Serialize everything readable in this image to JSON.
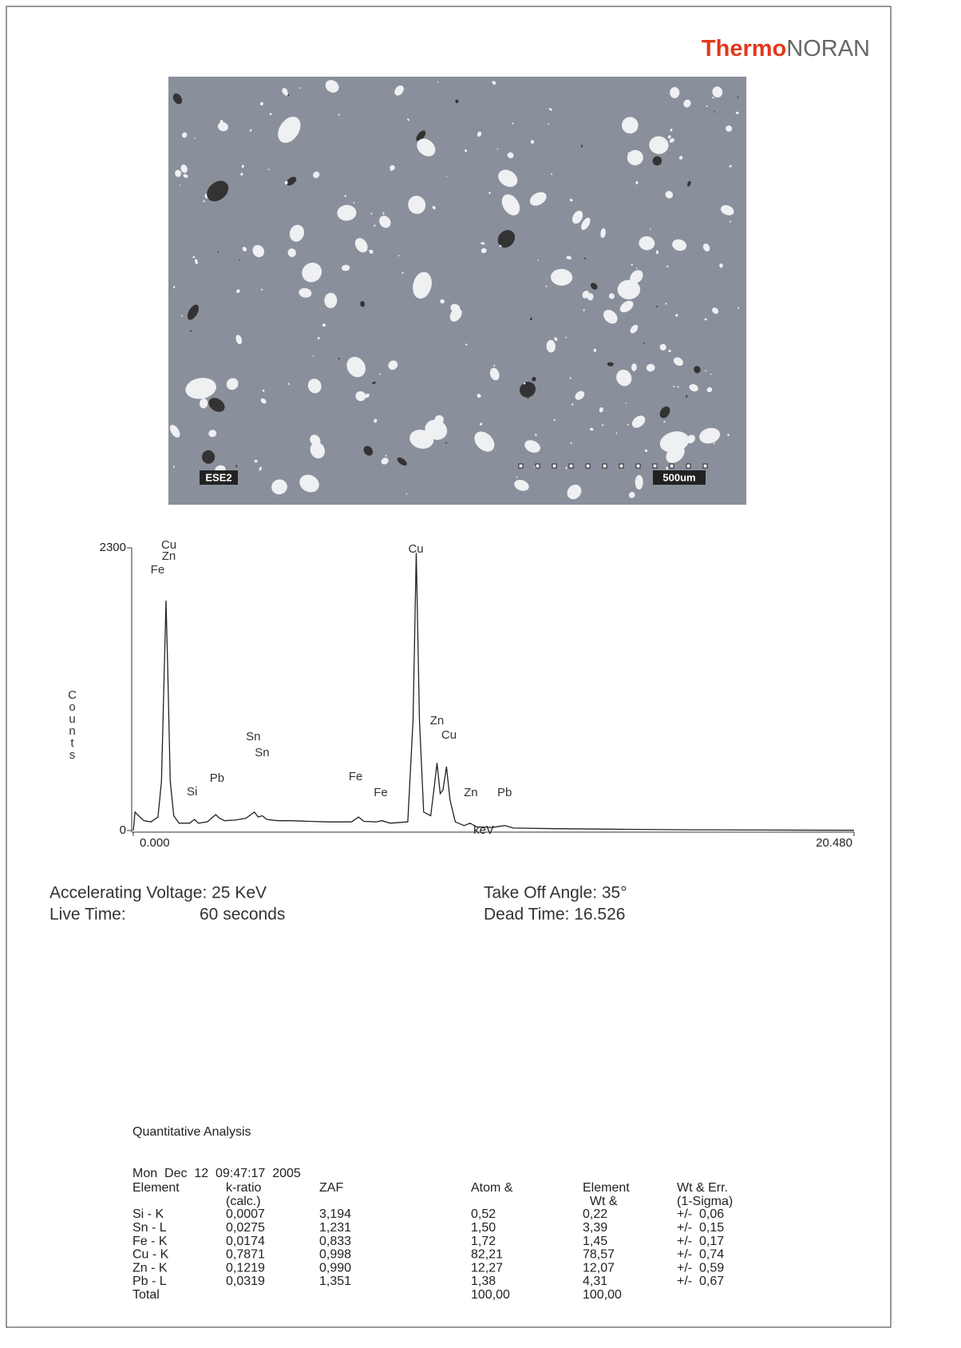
{
  "header": {
    "logo_bold": "Thermo",
    "logo_light": "NORAN"
  },
  "micrograph": {
    "detector": "ESE2",
    "scale": "500um"
  },
  "chart_data": {
    "type": "line",
    "ylabel": "Counts",
    "xlabel": "keV",
    "color": "#222222",
    "x": [
      0.0,
      0.05,
      0.15,
      0.3,
      0.5,
      0.7,
      0.8,
      0.88,
      0.93,
      0.98,
      1.05,
      1.15,
      1.3,
      1.6,
      1.74,
      1.85,
      2.1,
      2.34,
      2.45,
      2.6,
      2.9,
      3.2,
      3.44,
      3.55,
      3.66,
      3.8,
      4.1,
      4.5,
      5.0,
      5.5,
      6.2,
      6.4,
      6.55,
      6.9,
      7.06,
      7.3,
      7.8,
      7.95,
      8.04,
      8.13,
      8.25,
      8.45,
      8.55,
      8.63,
      8.72,
      8.8,
      8.9,
      9.0,
      9.15,
      9.4,
      9.57,
      9.75,
      10.2,
      10.55,
      10.8,
      12.0,
      14.0,
      16.0,
      18.0,
      20.48
    ],
    "values": [
      0,
      150,
      120,
      80,
      70,
      110,
      400,
      1300,
      1870,
      1300,
      400,
      120,
      60,
      60,
      90,
      60,
      70,
      130,
      100,
      80,
      85,
      100,
      150,
      110,
      120,
      90,
      80,
      80,
      75,
      70,
      70,
      110,
      75,
      70,
      80,
      60,
      70,
      900,
      2260,
      900,
      150,
      120,
      350,
      550,
      300,
      330,
      520,
      250,
      70,
      40,
      60,
      30,
      25,
      40,
      20,
      15,
      10,
      6,
      4,
      2
    ],
    "xlim": [
      0,
      20.48
    ],
    "ylim": [
      0,
      2300
    ],
    "xticks": [
      {
        "value": 0,
        "label": "0.000"
      },
      {
        "value": 20.48,
        "label": "20.480"
      }
    ],
    "yticks": [
      0,
      2300
    ],
    "annotations": [
      {
        "text": "Cu",
        "x": 1.01,
        "y": 2320
      },
      {
        "text": "Zn",
        "x": 1.01,
        "y": 2229
      },
      {
        "text": "Fe",
        "x": 0.69,
        "y": 2118
      },
      {
        "text": "Cu",
        "x": 8.03,
        "y": 2287
      },
      {
        "text": "Sn",
        "x": 3.41,
        "y": 760
      },
      {
        "text": "Sn",
        "x": 3.66,
        "y": 630
      },
      {
        "text": "Pb",
        "x": 2.38,
        "y": 422
      },
      {
        "text": "Si",
        "x": 1.67,
        "y": 312
      },
      {
        "text": "Fe",
        "x": 6.32,
        "y": 435
      },
      {
        "text": "Fe",
        "x": 7.03,
        "y": 305
      },
      {
        "text": "Zn",
        "x": 8.63,
        "y": 890
      },
      {
        "text": "Cu",
        "x": 8.97,
        "y": 773
      },
      {
        "text": "Zn",
        "x": 9.59,
        "y": 305
      },
      {
        "text": "Pb",
        "x": 10.55,
        "y": 305
      }
    ]
  },
  "acquisition": {
    "voltage": "Accelerating Voltage: 25 KeV",
    "live_time_label": "Live Time:",
    "live_time_value": "60 seconds",
    "take_off": "Take Off Angle: 35°",
    "dead_time": "Dead Time: 16.526"
  },
  "quantitative": {
    "title": "Quantitative Analysis",
    "date": "Mon  Dec  12  09:47:17  2005",
    "headers": [
      [
        "Element"
      ],
      [
        "k-ratio",
        "(calc.)"
      ],
      [
        "ZAF"
      ],
      [
        "Atom &"
      ],
      [
        "Element",
        "  Wt &"
      ],
      [
        "Wt & Err.",
        "(1-Sigma)"
      ]
    ],
    "rows": [
      [
        "Si - K",
        "0,0007",
        "3,194",
        "0,52",
        "0,22",
        "+/-  0,06"
      ],
      [
        "Sn - L",
        "0,0275",
        "1,231",
        "1,50",
        "3,39",
        "+/-  0,15"
      ],
      [
        "Fe - K",
        "0,0174",
        "0,833",
        "1,72",
        "1,45",
        "+/-  0,17"
      ],
      [
        "Cu - K",
        "0,7871",
        "0,998",
        "82,21",
        "78,57",
        "+/-  0,74"
      ],
      [
        "Zn - K",
        "0,1219",
        "0,990",
        "12,27",
        "12,07",
        "+/-  0,59"
      ],
      [
        "Pb - L",
        "0,0319",
        "1,351",
        "1,38",
        "4,31",
        "+/-  0,67"
      ]
    ],
    "total": {
      "label": "Total",
      "atom": "100,00",
      "wt": "100,00"
    }
  }
}
